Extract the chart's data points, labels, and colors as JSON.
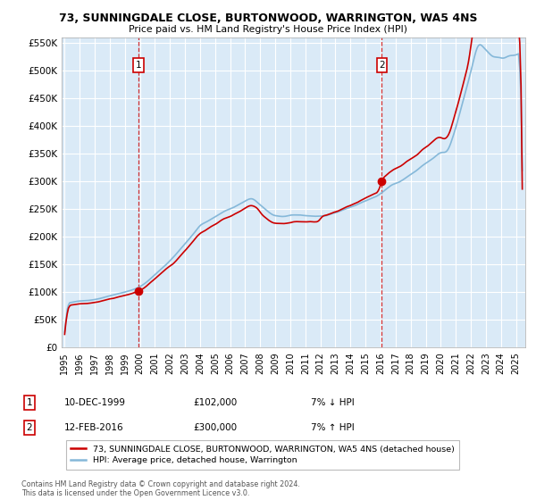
{
  "title1": "73, SUNNINGDALE CLOSE, BURTONWOOD, WARRINGTON, WA5 4NS",
  "title2": "Price paid vs. HM Land Registry's House Price Index (HPI)",
  "ylim": [
    0,
    560000
  ],
  "yticks": [
    0,
    50000,
    100000,
    150000,
    200000,
    250000,
    300000,
    350000,
    400000,
    450000,
    500000,
    550000
  ],
  "bg_color": "#daeaf7",
  "grid_color": "#ffffff",
  "hpi_color": "#85b8d9",
  "price_color": "#cc0000",
  "sale1_date": "10-DEC-1999",
  "sale1_price": 102000,
  "sale1_hpi_pct": "7% ↓ HPI",
  "sale2_date": "12-FEB-2016",
  "sale2_price": 300000,
  "sale2_hpi_pct": "7% ↑ HPI",
  "legend_line1": "73, SUNNINGDALE CLOSE, BURTONWOOD, WARRINGTON, WA5 4NS (detached house)",
  "legend_line2": "HPI: Average price, detached house, Warrington",
  "footnote": "Contains HM Land Registry data © Crown copyright and database right 2024.\nThis data is licensed under the Open Government Licence v3.0.",
  "x_start_year": 1995,
  "x_end_year": 2025
}
